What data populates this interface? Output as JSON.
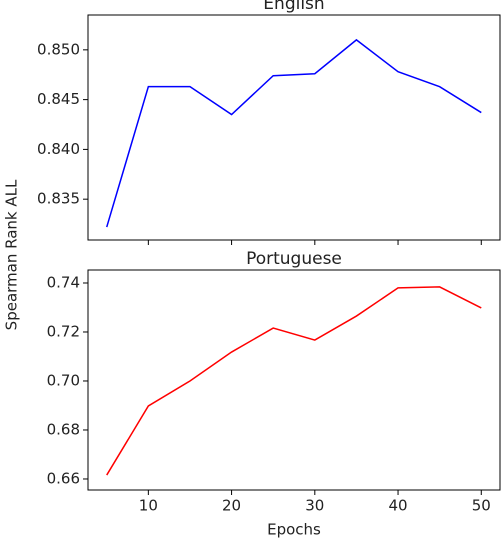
{
  "chart_data": [
    {
      "type": "line",
      "title": "English",
      "ylabel": "Spearman Rank ALL",
      "x": [
        5,
        10,
        15,
        20,
        25,
        30,
        35,
        40,
        45,
        50
      ],
      "series": [
        {
          "color": "#0000ff",
          "values": [
            0.8322,
            0.8463,
            0.8463,
            0.8435,
            0.8474,
            0.8476,
            0.851,
            0.8478,
            0.8463,
            0.8437
          ]
        }
      ],
      "xlim": [
        2.75,
        52.25
      ],
      "xticks": [
        10,
        20,
        30,
        40,
        50
      ],
      "ylim": [
        0.8309,
        0.8535
      ],
      "yticks": [
        0.835,
        {
          "value": 0.84,
          "label": "0.840"
        },
        0.845,
        {
          "value": 0.85,
          "label": "0.850"
        }
      ]
    },
    {
      "type": "line",
      "title": "Portuguese",
      "xlabel": "Epochs",
      "x": [
        5,
        10,
        15,
        20,
        25,
        30,
        35,
        40,
        45,
        50
      ],
      "series": [
        {
          "color": "#ff0000",
          "values": [
            0.6616,
            0.6898,
            0.7,
            0.7118,
            0.7216,
            0.7167,
            0.7265,
            0.738,
            0.7384,
            0.7298
          ]
        }
      ],
      "xlim": [
        2.75,
        52.25
      ],
      "xticks": [
        10,
        20,
        30,
        40,
        50
      ],
      "ylim": [
        0.6555,
        0.7453
      ],
      "yticks": [
        0.66,
        0.68,
        {
          "value": 0.7,
          "label": "0.70"
        },
        0.72,
        0.74
      ]
    }
  ]
}
